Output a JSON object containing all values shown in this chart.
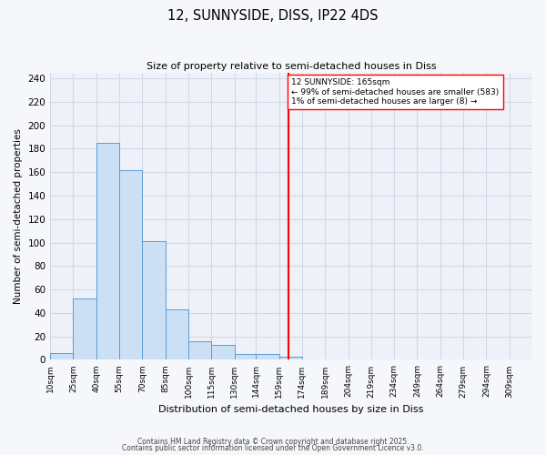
{
  "title": "12, SUNNYSIDE, DISS, IP22 4DS",
  "subtitle": "Size of property relative to semi-detached houses in Diss",
  "xlabel": "Distribution of semi-detached houses by size in Diss",
  "ylabel": "Number of semi-detached properties",
  "bin_labels": [
    "10sqm",
    "25sqm",
    "40sqm",
    "55sqm",
    "70sqm",
    "85sqm",
    "100sqm",
    "115sqm",
    "130sqm",
    "144sqm",
    "159sqm",
    "174sqm",
    "189sqm",
    "204sqm",
    "219sqm",
    "234sqm",
    "249sqm",
    "264sqm",
    "279sqm",
    "294sqm",
    "309sqm"
  ],
  "bin_edges": [
    10,
    25,
    40,
    55,
    70,
    85,
    100,
    115,
    130,
    144,
    159,
    174,
    189,
    204,
    219,
    234,
    249,
    264,
    279,
    294,
    309,
    324
  ],
  "bar_heights": [
    6,
    52,
    185,
    162,
    101,
    43,
    16,
    13,
    5,
    5,
    3,
    0,
    0,
    0,
    0,
    0,
    0,
    0,
    0,
    0,
    0
  ],
  "bar_color": "#cce0f5",
  "bar_edge_color": "#5b9bd5",
  "vline_x": 165,
  "vline_color": "red",
  "annotation_title": "12 SUNNYSIDE: 165sqm",
  "annotation_line1": "← 99% of semi-detached houses are smaller (583)",
  "annotation_line2": "1% of semi-detached houses are larger (8) →",
  "annotation_box_facecolor": "white",
  "annotation_box_edgecolor": "red",
  "ylim": [
    0,
    245
  ],
  "yticks": [
    0,
    20,
    40,
    60,
    80,
    100,
    120,
    140,
    160,
    180,
    200,
    220,
    240
  ],
  "plot_bg_color": "#eef2f8",
  "fig_bg_color": "#f5f7fb",
  "grid_color": "#d0d8e8",
  "footnote1": "Contains HM Land Registry data © Crown copyright and database right 2025.",
  "footnote2": "Contains public sector information licensed under the Open Government Licence v3.0."
}
